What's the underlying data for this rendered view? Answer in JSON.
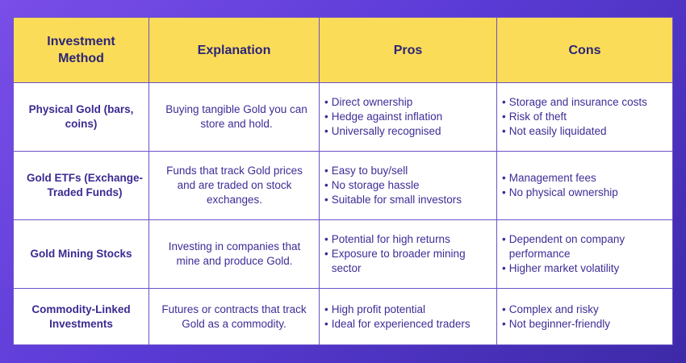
{
  "headers": [
    "Investment Method",
    "Explanation",
    "Pros",
    "Cons"
  ],
  "rows": [
    {
      "method": "Physical Gold (bars, coins)",
      "explanation": "Buying tangible Gold you can store and hold.",
      "pros": [
        "Direct ownership",
        "Hedge against inflation",
        "Universally recognised"
      ],
      "cons": [
        "Storage and insurance costs",
        "Risk of theft",
        "Not easily liquidated"
      ]
    },
    {
      "method": "Gold ETFs (Exchange-Traded Funds)",
      "explanation": "Funds that track Gold prices and are traded on stock exchanges.",
      "pros": [
        "Easy to buy/sell",
        "No storage hassle",
        "Suitable for small investors"
      ],
      "cons": [
        "Management fees",
        "No physical ownership"
      ]
    },
    {
      "method": "Gold Mining Stocks",
      "explanation": "Investing in companies that mine and produce Gold.",
      "pros": [
        "Potential for high returns",
        "Exposure to broader mining sector"
      ],
      "cons": [
        "Dependent on company performance",
        "Higher market volatility"
      ]
    },
    {
      "method": "Commodity-Linked Investments",
      "explanation": "Futures or contracts that track Gold as a commodity.",
      "pros": [
        "High profit potential",
        "Ideal for experienced traders"
      ],
      "cons": [
        "Complex and risky",
        "Not beginner-friendly"
      ]
    }
  ],
  "colors": {
    "header_background": "#fbdc58",
    "border": "#6c52c9",
    "text": "#3f2c96"
  }
}
